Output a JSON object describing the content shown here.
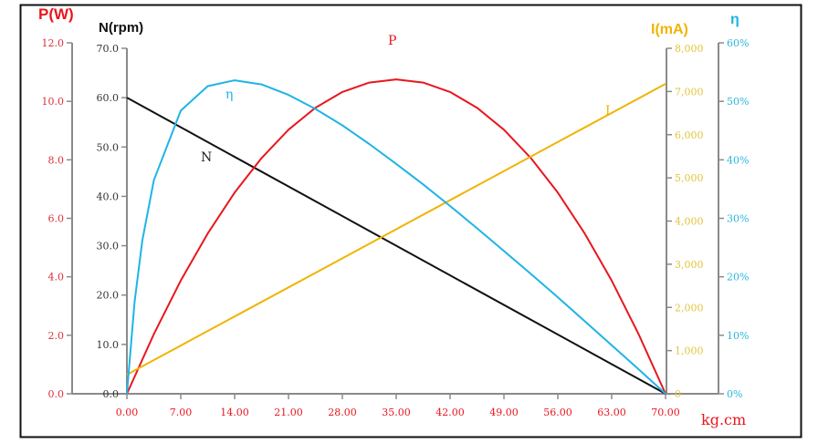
{
  "chart_data": {
    "type": "line",
    "xlabel": "kg.cm",
    "xlim": [
      0,
      70
    ],
    "x_ticks": [
      "0.00",
      "7.00",
      "14.00",
      "21.00",
      "28.00",
      "35.00",
      "42.00",
      "49.00",
      "56.00",
      "63.00",
      "70.00"
    ],
    "axes": {
      "P": {
        "title": "P(W)",
        "range": [
          0,
          12
        ],
        "ticks": [
          "0.0",
          "2.0",
          "4.0",
          "6.0",
          "8.0",
          "10.0",
          "12.0"
        ],
        "color": "#e8161e",
        "tick_color": "#d8323c"
      },
      "N": {
        "title": "N(rpm)",
        "range": [
          0,
          70
        ],
        "ticks": [
          "0.0",
          "10.0",
          "20.0",
          "30.0",
          "40.0",
          "50.0",
          "60.0",
          "70.0"
        ],
        "color": "#111111",
        "tick_color": "#333333"
      },
      "I": {
        "title": "I(mA)",
        "range": [
          0,
          8000
        ],
        "ticks": [
          "0",
          "1,000",
          "2,000",
          "3,000",
          "4,000",
          "5,000",
          "6,000",
          "7,000",
          "8,000"
        ],
        "color": "#f0b400",
        "tick_color": "#e2c43c"
      },
      "eta": {
        "title": "η",
        "range": [
          0,
          60
        ],
        "ticks": [
          "0%",
          "10%",
          "20%",
          "30%",
          "40%",
          "50%",
          "60%"
        ],
        "color": "#1eb4e6",
        "tick_color": "#2ab6dc"
      }
    },
    "series": [
      {
        "name": "N",
        "axis": "N",
        "color": "#111111",
        "x": [
          0,
          70
        ],
        "y": [
          60,
          0
        ]
      },
      {
        "name": "P",
        "axis": "P",
        "color": "#e8161e",
        "x": [
          0,
          3.5,
          7,
          10.5,
          14,
          17.5,
          21,
          24.5,
          28,
          31.5,
          35,
          38.5,
          42,
          45.5,
          49,
          52.5,
          56,
          59.5,
          63,
          66.5,
          70
        ],
        "y": [
          0,
          2.04,
          3.87,
          5.48,
          6.88,
          8.06,
          9.03,
          9.78,
          10.32,
          10.64,
          10.75,
          10.64,
          10.32,
          9.78,
          9.03,
          8.06,
          6.88,
          5.48,
          3.87,
          2.04,
          0
        ]
      },
      {
        "name": "I",
        "axis": "I",
        "color": "#f0b400",
        "x": [
          0,
          70
        ],
        "y": [
          443,
          7177
        ]
      },
      {
        "name": "η",
        "axis": "eta",
        "color": "#1eb4e6",
        "x": [
          0,
          1,
          2,
          3.5,
          7,
          10.5,
          14,
          17.5,
          21,
          24.5,
          28,
          31.5,
          35,
          38.5,
          42,
          45.5,
          49,
          52.5,
          56,
          59.5,
          63,
          66.5,
          70
        ],
        "y": [
          0,
          15.7,
          26.2,
          36.5,
          48.4,
          52.6,
          53.6,
          52.9,
          51.1,
          48.7,
          45.9,
          42.7,
          39.3,
          35.8,
          32.1,
          28.3,
          24.4,
          20.5,
          16.5,
          12.4,
          8.3,
          4.2,
          0
        ]
      }
    ],
    "curve_labels": {
      "P": "P",
      "N": "N",
      "I": "I",
      "eta": "η"
    },
    "grid": false,
    "legend": "none"
  }
}
